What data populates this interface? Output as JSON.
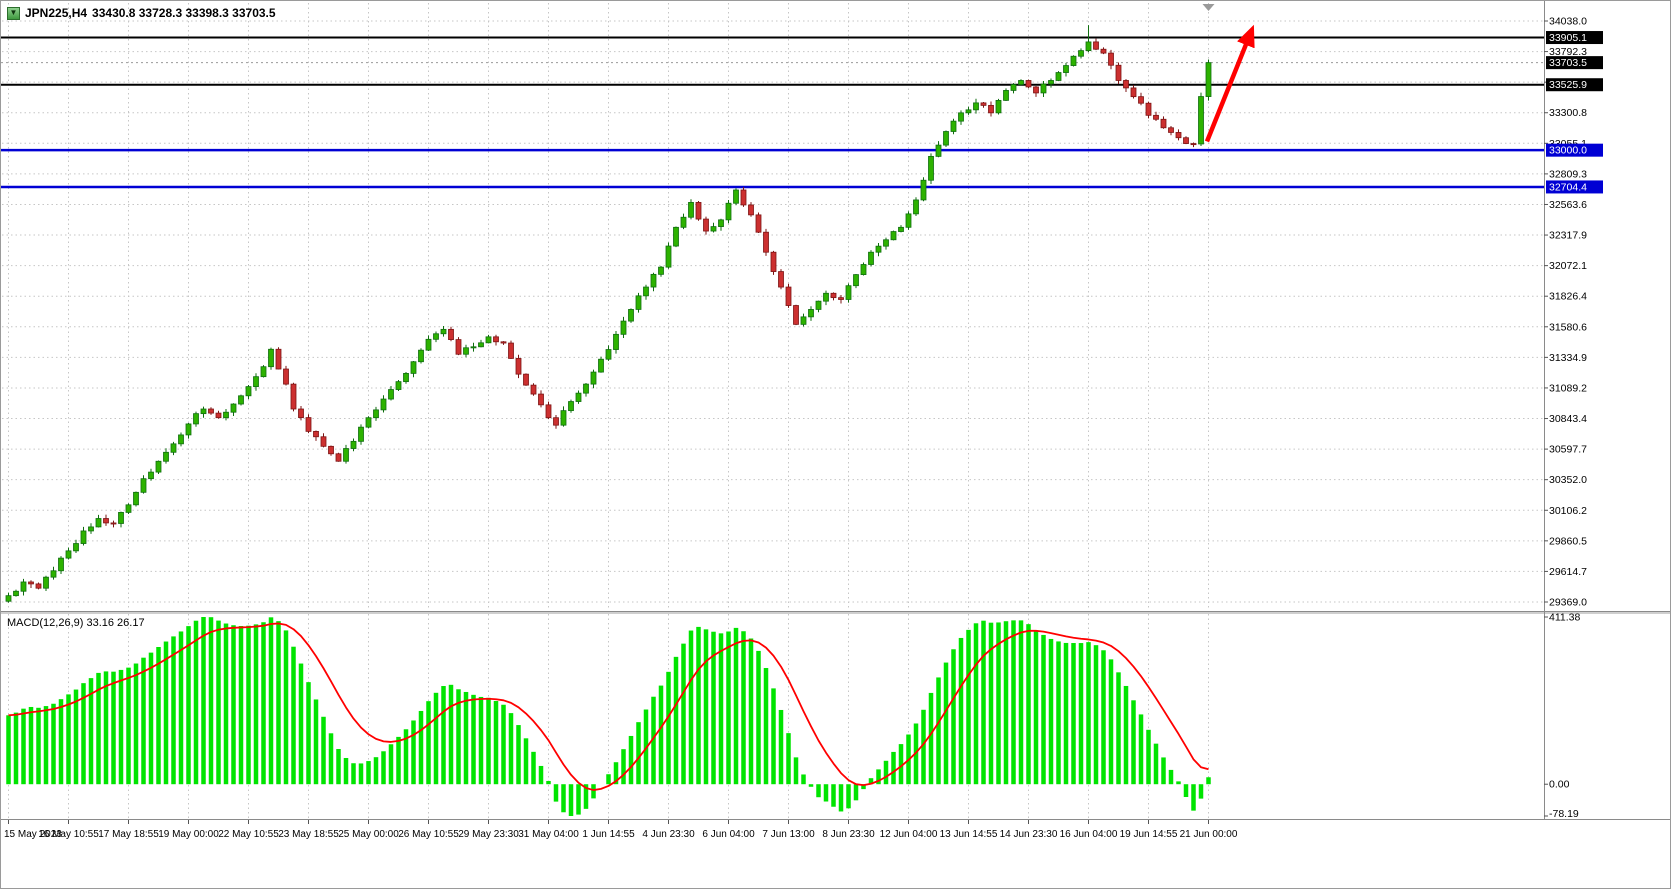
{
  "window": {
    "symbol_label": "JPN225,H4",
    "ohlc_label": "33430.8 33728.3 33398.3 33703.5",
    "dropdown_icon": "▼"
  },
  "colors": {
    "background": "#ffffff",
    "grid": "#c6c6c6",
    "candle_up_fill": "#2db200",
    "candle_up_stroke": "#0f6e0f",
    "candle_down_fill": "#cc3030",
    "candle_down_stroke": "#7c1414",
    "macd_histogram": "#00e400",
    "macd_signal": "#ff0000",
    "axis_text": "#000000",
    "separator": "#8a8a8a",
    "badge_text": "#ffffff",
    "current_price_line": "#999999",
    "arrow": "#ff0000"
  },
  "chart_data": [
    {
      "type": "candlestick",
      "symbol": "JPN225",
      "timeframe": "H4",
      "ohlc_current": {
        "open": 33430.8,
        "high": 33728.3,
        "low": 33398.3,
        "close": 33703.5
      },
      "ylim": [
        29369.0,
        34038.0
      ],
      "y_axis_labels": [
        "34038.0",
        "33792.3",
        "33546.5",
        "33300.8",
        "33055.1",
        "32809.3",
        "32563.6",
        "32317.9",
        "32072.1",
        "31826.4",
        "31580.6",
        "31334.9",
        "31089.2",
        "30843.4",
        "30597.7",
        "30352.0",
        "30106.2",
        "29860.5",
        "29614.7",
        "29369.0"
      ],
      "x_labels": [
        "15 May 2023",
        "16 May 10:55",
        "17 May 18:55",
        "19 May 00:00",
        "22 May 10:55",
        "23 May 18:55",
        "25 May 00:00",
        "26 May 10:55",
        "29 May 23:30",
        "31 May 04:00",
        "1 Jun 14:55",
        "4 Jun 23:30",
        "6 Jun 04:00",
        "7 Jun 13:00",
        "8 Jun 23:30",
        "12 Jun 04:00",
        "13 Jun 14:55",
        "14 Jun 23:30",
        "16 Jun 04:00",
        "19 Jun 14:55",
        "21 Jun 00:00"
      ],
      "bars_per_gridline": 8,
      "price_path_anchors": [
        [
          0,
          29420
        ],
        [
          2,
          29530
        ],
        [
          4,
          29480
        ],
        [
          6,
          29620
        ],
        [
          8,
          29780
        ],
        [
          10,
          29940
        ],
        [
          12,
          30040
        ],
        [
          14,
          30000
        ],
        [
          16,
          30150
        ],
        [
          18,
          30360
        ],
        [
          20,
          30500
        ],
        [
          22,
          30640
        ],
        [
          24,
          30800
        ],
        [
          26,
          30920
        ],
        [
          28,
          30850
        ],
        [
          30,
          30960
        ],
        [
          32,
          31100
        ],
        [
          34,
          31260
        ],
        [
          35,
          31400
        ],
        [
          37,
          31120
        ],
        [
          38,
          30920
        ],
        [
          40,
          30740
        ],
        [
          42,
          30620
        ],
        [
          44,
          30500
        ],
        [
          46,
          30660
        ],
        [
          48,
          30850
        ],
        [
          50,
          31000
        ],
        [
          52,
          31140
        ],
        [
          54,
          31300
        ],
        [
          56,
          31480
        ],
        [
          58,
          31560
        ],
        [
          60,
          31360
        ],
        [
          62,
          31420
        ],
        [
          64,
          31500
        ],
        [
          66,
          31450
        ],
        [
          68,
          31200
        ],
        [
          70,
          31040
        ],
        [
          72,
          30850
        ],
        [
          73,
          30790
        ],
        [
          75,
          30980
        ],
        [
          77,
          31120
        ],
        [
          79,
          31320
        ],
        [
          81,
          31520
        ],
        [
          83,
          31720
        ],
        [
          85,
          31900
        ],
        [
          87,
          32060
        ],
        [
          89,
          32380
        ],
        [
          91,
          32580
        ],
        [
          93,
          32350
        ],
        [
          95,
          32440
        ],
        [
          97,
          32680
        ],
        [
          99,
          32480
        ],
        [
          101,
          32180
        ],
        [
          103,
          31900
        ],
        [
          105,
          31600
        ],
        [
          107,
          31720
        ],
        [
          109,
          31850
        ],
        [
          111,
          31800
        ],
        [
          113,
          32000
        ],
        [
          115,
          32180
        ],
        [
          117,
          32280
        ],
        [
          119,
          32380
        ],
        [
          121,
          32600
        ],
        [
          123,
          32950
        ],
        [
          125,
          33150
        ],
        [
          127,
          33300
        ],
        [
          129,
          33380
        ],
        [
          131,
          33300
        ],
        [
          133,
          33480
        ],
        [
          135,
          33560
        ],
        [
          137,
          33460
        ],
        [
          139,
          33560
        ],
        [
          141,
          33680
        ],
        [
          143,
          33800
        ],
        [
          144,
          33870
        ],
        [
          146,
          33780
        ],
        [
          148,
          33560
        ],
        [
          150,
          33430
        ],
        [
          152,
          33280
        ],
        [
          154,
          33180
        ],
        [
          156,
          33100
        ],
        [
          158,
          33050
        ],
        [
          159,
          33430.8
        ],
        [
          160,
          33703.5
        ]
      ],
      "swing_high": {
        "index": 144,
        "price": 34005
      },
      "levels": [
        {
          "label": "33905.1",
          "price": 33905.1,
          "color": "#000000",
          "line_width": 2,
          "style": "solid"
        },
        {
          "label": "33703.5",
          "price": 33703.5,
          "color": "#000000",
          "line_width": 1,
          "style": "dotted"
        },
        {
          "label": "33525.9",
          "price": 33525.9,
          "color": "#000000",
          "line_width": 2,
          "style": "solid"
        },
        {
          "label": "33000.0",
          "price": 33000.0,
          "color": "#0000d4",
          "line_width": 2.5,
          "style": "solid"
        },
        {
          "label": "32704.4",
          "price": 32704.4,
          "color": "#0000d4",
          "line_width": 2.5,
          "style": "solid"
        }
      ],
      "annotations": [
        {
          "type": "up-arrow",
          "color": "#ff0000",
          "from": {
            "index": 159.8,
            "price": 33070
          },
          "to": {
            "index": 165.2,
            "price": 33880
          }
        }
      ]
    },
    {
      "type": "bar",
      "name": "MACD",
      "label": "MACD(12,26,9) 33.16 26.17",
      "fast_ema": 12,
      "slow_ema": 26,
      "signal_period": 9,
      "current_macd": 33.16,
      "current_signal": 26.17,
      "ylim": [
        -78.19,
        411.38
      ],
      "y_axis_labels": [
        "411.38",
        "0.00",
        "-78.19"
      ],
      "lead_in": {
        "bars": 20,
        "start_price": 28750
      }
    }
  ]
}
